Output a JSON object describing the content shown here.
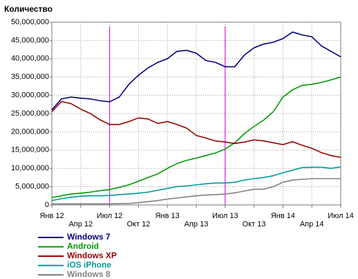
{
  "chart_data": {
    "type": "line",
    "y_label": "Количество",
    "categories": [
      "Янв 12",
      null,
      null,
      "Апр 12",
      null,
      null,
      "Июл 12",
      null,
      null,
      "Окт 12",
      null,
      null,
      "Янв 13",
      null,
      null,
      "Апр 13",
      null,
      null,
      "Июл 13",
      null,
      null,
      "Окт 13",
      null,
      null,
      "Янв 14",
      null,
      null,
      "Апр 14",
      null,
      null,
      "Июл 14"
    ],
    "series": [
      {
        "name": "Windows 7",
        "color": "#000080",
        "values": [
          26,
          29,
          29.5,
          29.2,
          29,
          28.5,
          28.2,
          29.5,
          33,
          35.5,
          37.5,
          39,
          40,
          42,
          42.3,
          41.5,
          39.5,
          39,
          37.8,
          37.8,
          41,
          43,
          44,
          44.5,
          45.5,
          47.3,
          46.5,
          46,
          43.5,
          42,
          40.5
        ]
      },
      {
        "name": "Android",
        "color": "#009900",
        "values": [
          2,
          2.5,
          3,
          3.2,
          3.5,
          3.9,
          4.2,
          4.8,
          5.5,
          6.5,
          7.5,
          8.5,
          10,
          11.3,
          12.2,
          12.8,
          13.5,
          14.2,
          15.3,
          17,
          19.5,
          21.5,
          23.2,
          25.5,
          29.5,
          31.5,
          32.7,
          33,
          33.5,
          34.2,
          35
        ]
      },
      {
        "name": "Windows XP",
        "color": "#990000",
        "values": [
          25.5,
          28.3,
          27.7,
          26.2,
          25,
          23.3,
          22,
          22,
          22.8,
          23.8,
          23.5,
          22.3,
          22.8,
          22,
          21,
          19,
          18.3,
          17.5,
          17.2,
          16.8,
          17.2,
          17.8,
          17.5,
          17,
          16.5,
          17.3,
          16.3,
          15.5,
          14.3,
          13.5,
          13
        ]
      },
      {
        "name": "iOS iPhone",
        "color": "#009999",
        "values": [
          1.2,
          1.7,
          2.1,
          2.4,
          2.5,
          2.5,
          2.6,
          2.8,
          3,
          3.2,
          3.5,
          4,
          4.5,
          5,
          5.2,
          5.5,
          5.8,
          6,
          6,
          6.2,
          6.8,
          7.2,
          7.5,
          8,
          8.8,
          9.5,
          10.2,
          10.3,
          10.3,
          10,
          10.4
        ]
      },
      {
        "name": "Windows 8",
        "color": "#808080",
        "values": [
          0.3,
          0.3,
          0.3,
          0.3,
          0.3,
          0.3,
          0.3,
          0.35,
          0.4,
          0.6,
          0.9,
          1.2,
          1.6,
          1.9,
          2.2,
          2.5,
          2.7,
          2.8,
          3,
          3.3,
          3.8,
          4.3,
          4.3,
          5,
          6.2,
          6.8,
          7,
          7.2,
          7.2,
          7.2,
          7.2
        ]
      }
    ],
    "value_scale": 1000000,
    "ylim": [
      0,
      50000000
    ],
    "yticks": [
      {
        "value": 0,
        "label": "0"
      },
      {
        "value": 5000000,
        "label": "5,000,000"
      },
      {
        "value": 10000000,
        "label": "10,000,000"
      },
      {
        "value": 15000000,
        "label": "15,000,000"
      },
      {
        "value": 20000000,
        "label": "20,000,000"
      },
      {
        "value": 25000000,
        "label": "25,000,000"
      },
      {
        "value": 30000000,
        "label": "30,000,000"
      },
      {
        "value": 35000000,
        "label": "35,000,000"
      },
      {
        "value": 40000000,
        "label": "40,000,000"
      },
      {
        "value": 45000000,
        "label": "45,000,000"
      },
      {
        "value": 50000000,
        "label": "50,000,000"
      }
    ],
    "vlines": [
      "Июл 12",
      "Июл 13"
    ],
    "vline_color": "#cc00cc",
    "grid": true
  }
}
